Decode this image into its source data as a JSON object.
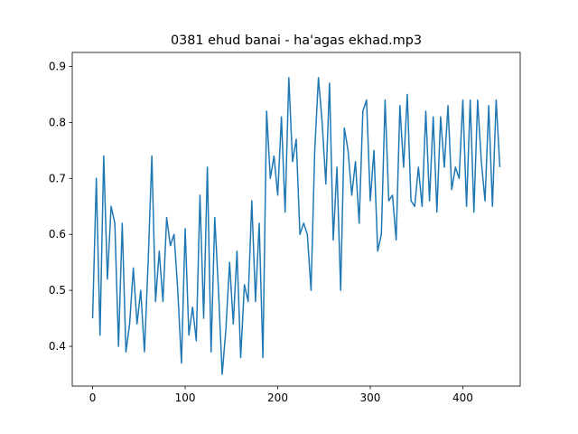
{
  "chart_data": {
    "type": "line",
    "title": "0381 ehud banai - ha'agas ekhad.mp3",
    "x": [
      0,
      4,
      8,
      12,
      16,
      20,
      24,
      28,
      32,
      36,
      40,
      44,
      48,
      52,
      56,
      60,
      64,
      68,
      72,
      76,
      80,
      84,
      88,
      92,
      96,
      100,
      104,
      108,
      112,
      116,
      120,
      124,
      128,
      132,
      136,
      140,
      144,
      148,
      152,
      156,
      160,
      164,
      168,
      172,
      176,
      180,
      184,
      188,
      192,
      196,
      200,
      204,
      208,
      212,
      216,
      220,
      224,
      228,
      232,
      236,
      240,
      244,
      248,
      252,
      256,
      260,
      264,
      268,
      272,
      276,
      280,
      284,
      288,
      292,
      296,
      300,
      304,
      308,
      312,
      316,
      320,
      324,
      328,
      332,
      336,
      340,
      344,
      348,
      352,
      356,
      360,
      364,
      368,
      372,
      376,
      380,
      384,
      388,
      392,
      396,
      400,
      404,
      408,
      412,
      416,
      420,
      424,
      428,
      432,
      436,
      440
    ],
    "series": [
      {
        "color": "#1f77b4",
        "values": [
          0.45,
          0.7,
          0.42,
          0.74,
          0.52,
          0.65,
          0.62,
          0.4,
          0.62,
          0.39,
          0.44,
          0.54,
          0.44,
          0.5,
          0.39,
          0.55,
          0.74,
          0.48,
          0.57,
          0.48,
          0.63,
          0.58,
          0.6,
          0.5,
          0.37,
          0.61,
          0.42,
          0.47,
          0.41,
          0.67,
          0.45,
          0.72,
          0.39,
          0.63,
          0.5,
          0.35,
          0.43,
          0.55,
          0.44,
          0.57,
          0.38,
          0.51,
          0.48,
          0.66,
          0.48,
          0.62,
          0.38,
          0.82,
          0.7,
          0.74,
          0.67,
          0.81,
          0.64,
          0.88,
          0.73,
          0.77,
          0.6,
          0.62,
          0.6,
          0.5,
          0.75,
          0.88,
          0.8,
          0.69,
          0.87,
          0.59,
          0.72,
          0.5,
          0.79,
          0.75,
          0.67,
          0.73,
          0.62,
          0.82,
          0.84,
          0.66,
          0.75,
          0.57,
          0.6,
          0.84,
          0.66,
          0.67,
          0.59,
          0.83,
          0.72,
          0.85,
          0.66,
          0.65,
          0.72,
          0.65,
          0.82,
          0.66,
          0.81,
          0.64,
          0.81,
          0.72,
          0.83,
          0.68,
          0.72,
          0.7,
          0.84,
          0.65,
          0.84,
          0.64,
          0.84,
          0.73,
          0.66,
          0.83,
          0.65,
          0.84,
          0.72
        ]
      }
    ],
    "xlim": [
      -22,
      462
    ],
    "ylim": [
      0.329,
      0.925
    ],
    "xticks": [
      0,
      100,
      200,
      300,
      400
    ],
    "yticks": [
      0.4,
      0.5,
      0.6,
      0.7,
      0.8,
      0.9
    ]
  }
}
